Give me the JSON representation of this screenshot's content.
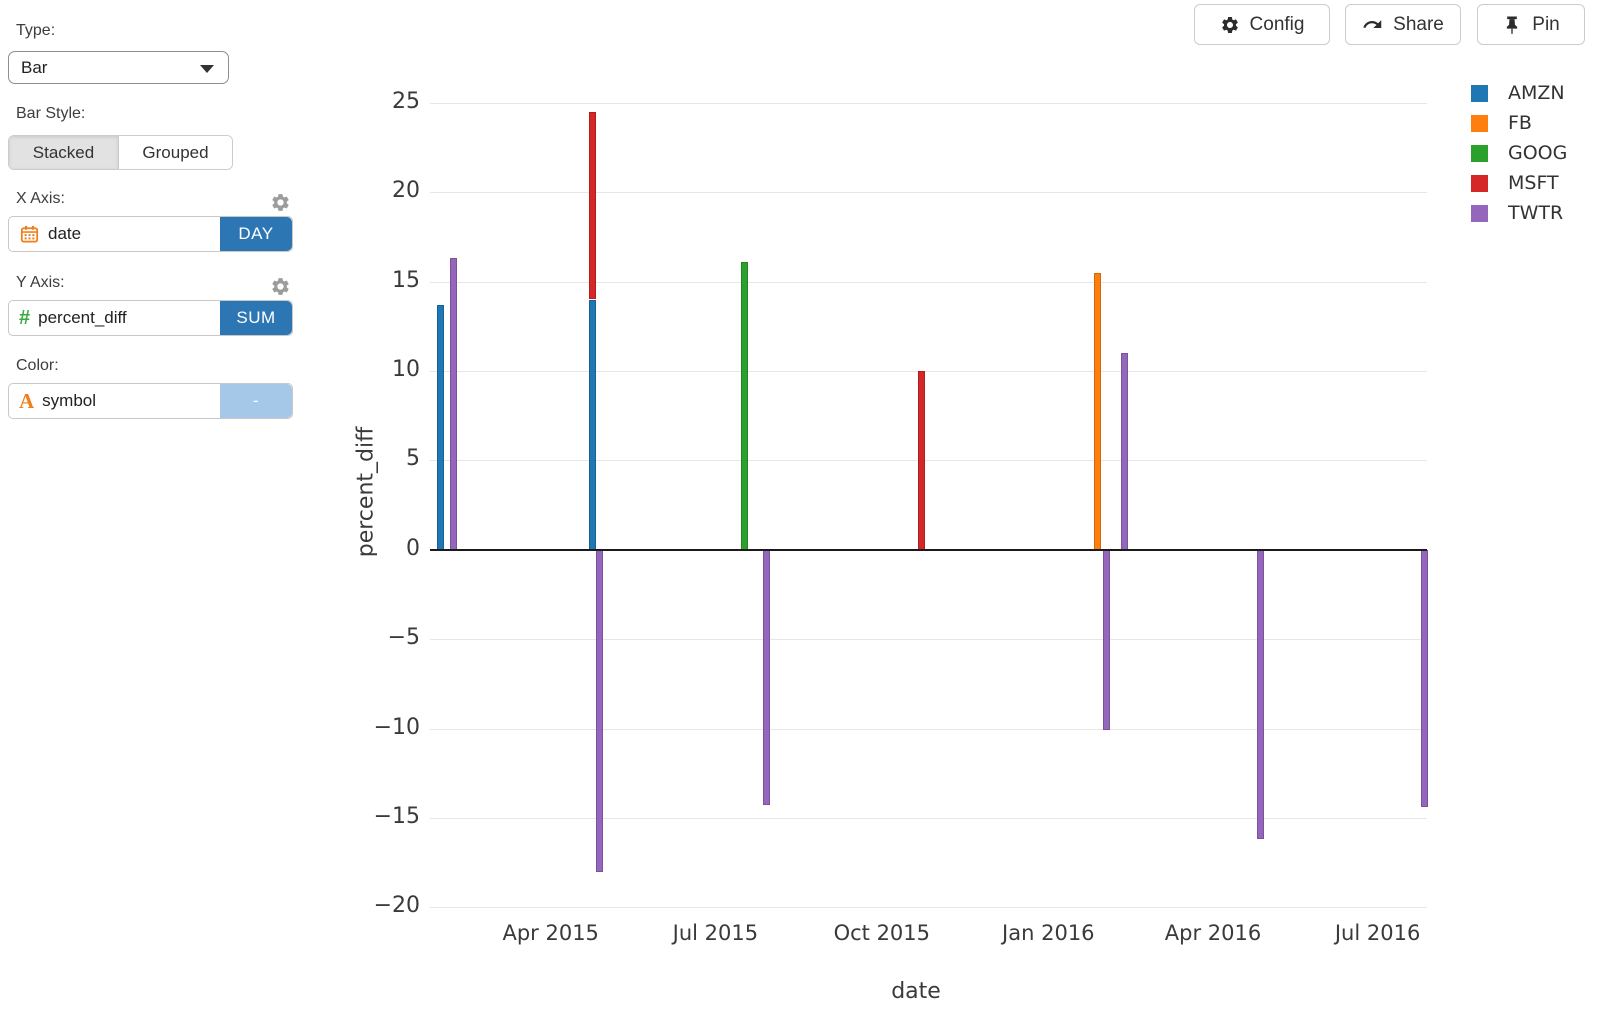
{
  "toolbar": {
    "config_label": "Config",
    "share_label": "Share",
    "pin_label": "Pin"
  },
  "sidebar": {
    "type_label": "Type:",
    "type_value": "Bar",
    "bar_style_label": "Bar Style:",
    "bar_style_options": [
      "Stacked",
      "Grouped"
    ],
    "bar_style_selected": "Stacked",
    "x_axis_label": "X Axis:",
    "x_axis_field": "date",
    "x_axis_agg": "DAY",
    "y_axis_label": "Y Axis:",
    "y_axis_icon": "#",
    "y_axis_field": "percent_diff",
    "y_axis_agg": "SUM",
    "color_label": "Color:",
    "color_icon": "A",
    "color_field": "symbol",
    "color_agg": "-"
  },
  "chart_data": {
    "type": "bar",
    "bar_style": "stacked",
    "xlabel": "date",
    "ylabel": "percent_diff",
    "x_type": "date",
    "grid": true,
    "legend_position": "top-right-outside",
    "ylim": [
      -21.5,
      26.5
    ],
    "yticks": [
      {
        "label": "25",
        "value": 25
      },
      {
        "label": "20",
        "value": 20
      },
      {
        "label": "15",
        "value": 15
      },
      {
        "label": "10",
        "value": 10
      },
      {
        "label": "5",
        "value": 5
      },
      {
        "label": "0",
        "value": 0
      },
      {
        "label": "−5",
        "value": -5
      },
      {
        "label": "−10",
        "value": -10
      },
      {
        "label": "−15",
        "value": -15
      },
      {
        "label": "−20",
        "value": -20
      }
    ],
    "xticks": [
      {
        "label": "Apr 2015",
        "date": "2015-04-01"
      },
      {
        "label": "Jul 2015",
        "date": "2015-07-01"
      },
      {
        "label": "Oct 2015",
        "date": "2015-10-01"
      },
      {
        "label": "Jan 2016",
        "date": "2016-01-01"
      },
      {
        "label": "Apr 2016",
        "date": "2016-04-01"
      },
      {
        "label": "Jul 2016",
        "date": "2016-07-01"
      }
    ],
    "legend": [
      {
        "symbol": "AMZN",
        "color": "#1f77b4"
      },
      {
        "symbol": "FB",
        "color": "#ff7f0e"
      },
      {
        "symbol": "GOOG",
        "color": "#2ca02c"
      },
      {
        "symbol": "MSFT",
        "color": "#d62728"
      },
      {
        "symbol": "TWTR",
        "color": "#9467bd"
      }
    ],
    "series_colors": {
      "AMZN": "#1f77b4",
      "FB": "#ff7f0e",
      "GOOG": "#2ca02c",
      "MSFT": "#d62728",
      "TWTR": "#9467bd"
    },
    "bars": [
      {
        "date": "2015-01-30",
        "segments": [
          {
            "symbol": "AMZN",
            "value": 13.7
          }
        ]
      },
      {
        "date": "2015-02-06",
        "segments": [
          {
            "symbol": "TWTR",
            "value": 16.3
          }
        ]
      },
      {
        "date": "2015-04-24",
        "segments": [
          {
            "symbol": "AMZN",
            "value": 14.0
          },
          {
            "symbol": "MSFT",
            "value": 10.5
          }
        ]
      },
      {
        "date": "2015-04-28",
        "segments": [
          {
            "symbol": "TWTR",
            "value": -18.0
          }
        ]
      },
      {
        "date": "2015-07-17",
        "segments": [
          {
            "symbol": "GOOG",
            "value": 16.1
          }
        ]
      },
      {
        "date": "2015-07-29",
        "segments": [
          {
            "symbol": "TWTR",
            "value": -14.3
          }
        ]
      },
      {
        "date": "2015-10-23",
        "segments": [
          {
            "symbol": "MSFT",
            "value": 10.0
          }
        ]
      },
      {
        "date": "2016-01-28",
        "segments": [
          {
            "symbol": "FB",
            "value": 15.5
          }
        ]
      },
      {
        "date": "2016-02-02",
        "segments": [
          {
            "symbol": "TWTR",
            "value": -10.1
          }
        ]
      },
      {
        "date": "2016-02-12",
        "segments": [
          {
            "symbol": "TWTR",
            "value": 11.0
          }
        ]
      },
      {
        "date": "2016-04-27",
        "segments": [
          {
            "symbol": "TWTR",
            "value": -16.2
          }
        ]
      },
      {
        "date": "2016-07-27",
        "segments": [
          {
            "symbol": "TWTR",
            "value": -14.4
          }
        ]
      }
    ]
  }
}
